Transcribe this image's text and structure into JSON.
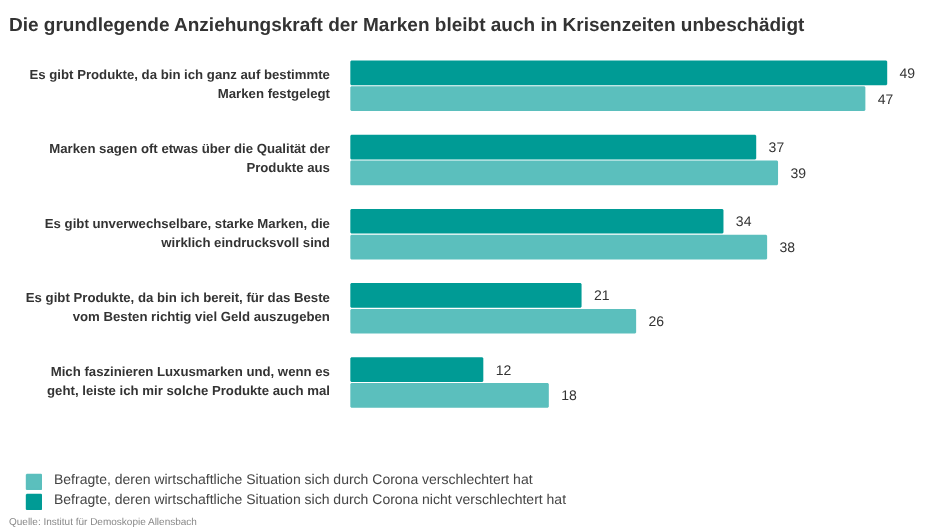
{
  "chart_data": {
    "type": "bar",
    "orientation": "horizontal",
    "title": "Die grundlegende Anziehungskraft der Marken bleibt auch in Krisenzeiten unbeschädigt",
    "categories": [
      "Es gibt Produkte, da bin ich ganz auf bestimmte\nMarken festgelegt",
      "Marken sagen oft etwas über die Qualität der\nProdukte aus",
      "Es gibt unverwechselbare, starke Marken, die\nwirklich eindrucksvoll sind",
      "Es gibt Produkte, da bin ich bereit, für das Beste\nvom Besten richtig viel Geld auszugeben",
      "Mich faszinieren Luxusmarken und, wenn es\ngeht, leiste ich mir solche Produkte auch mal"
    ],
    "series": [
      {
        "name": "Befragte, deren wirtschaftliche Situation sich durch Corona nicht verschlechtert hat",
        "color": "#009b95",
        "values": [
          49,
          37,
          34,
          21,
          12
        ]
      },
      {
        "name": "Befragte, deren wirtschaftliche Situation sich durch Corona verschlechtert hat",
        "color": "#5bbfbd",
        "values": [
          47,
          39,
          38,
          26,
          18
        ]
      }
    ],
    "data_labels": true,
    "legend": "bottom",
    "grid": false,
    "annotations": [
      "Quelle: Institut für Demoskopie Allensbach"
    ]
  }
}
